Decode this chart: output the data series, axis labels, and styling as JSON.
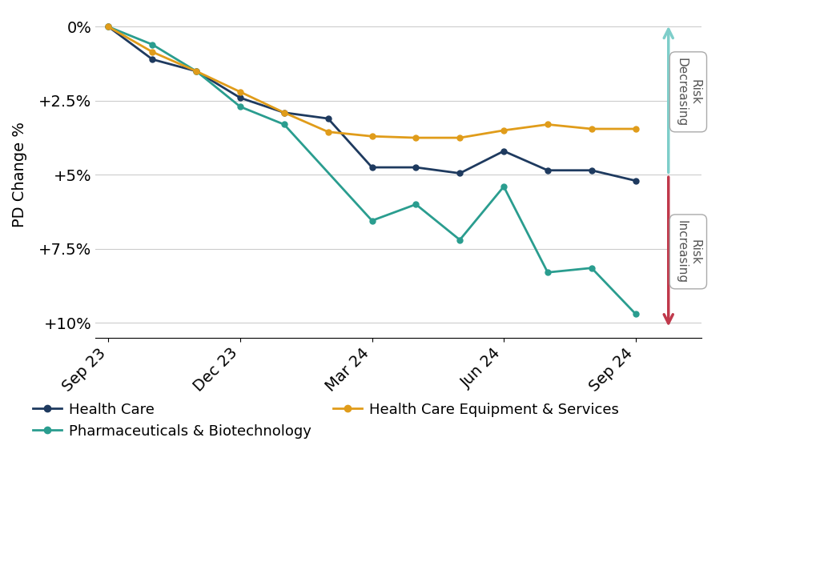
{
  "ylabel": "PD Change %",
  "health_care_color": "#1e3a5f",
  "pharma_bio_color": "#2a9d8f",
  "equipment_services_color": "#e09c1a",
  "bg_color": "#ffffff",
  "grid_color": "#cccccc",
  "ytick_labels": [
    "0%",
    "+2.5%",
    "+5%",
    "+7.5%",
    "+10%"
  ],
  "ytick_values": [
    0,
    2.5,
    5.0,
    7.5,
    10.0
  ],
  "ylim": [
    10.5,
    -0.5
  ],
  "arrow_up_color": "#7ececa",
  "arrow_down_color": "#c0394b",
  "hc_x": [
    0,
    1,
    2,
    3,
    4,
    5,
    6,
    7,
    8,
    9,
    10,
    11,
    12
  ],
  "hc_y": [
    0.0,
    1.1,
    1.5,
    2.4,
    2.9,
    3.1,
    4.75,
    4.75,
    4.95,
    4.2,
    4.85,
    4.85,
    5.2
  ],
  "pb_x": [
    0,
    1,
    2,
    3,
    4,
    6,
    7,
    8,
    9,
    10,
    11,
    12
  ],
  "pb_y": [
    0.0,
    0.6,
    1.5,
    2.7,
    3.3,
    6.55,
    6.0,
    7.2,
    5.4,
    8.3,
    8.15,
    9.7
  ],
  "hce_x": [
    0,
    1,
    2,
    3,
    4,
    5,
    6,
    7,
    8,
    9,
    10,
    11,
    12
  ],
  "hce_y": [
    0.0,
    0.85,
    1.5,
    2.2,
    2.9,
    3.55,
    3.7,
    3.75,
    3.75,
    3.5,
    3.3,
    3.45,
    3.45
  ],
  "x_tick_positions": [
    0,
    3,
    6,
    9,
    12
  ],
  "x_tick_labels": [
    "Sep 23",
    "Dec 23",
    "Mar 24",
    "Jun 24",
    "Sep 24"
  ],
  "legend_labels": [
    "Health Care",
    "Pharmaceuticals & Biotechnology",
    "Health Care Equipment & Services"
  ],
  "risk_dec_label": "Risk\nDecreasing",
  "risk_inc_label": "Risk\nIncreasing"
}
